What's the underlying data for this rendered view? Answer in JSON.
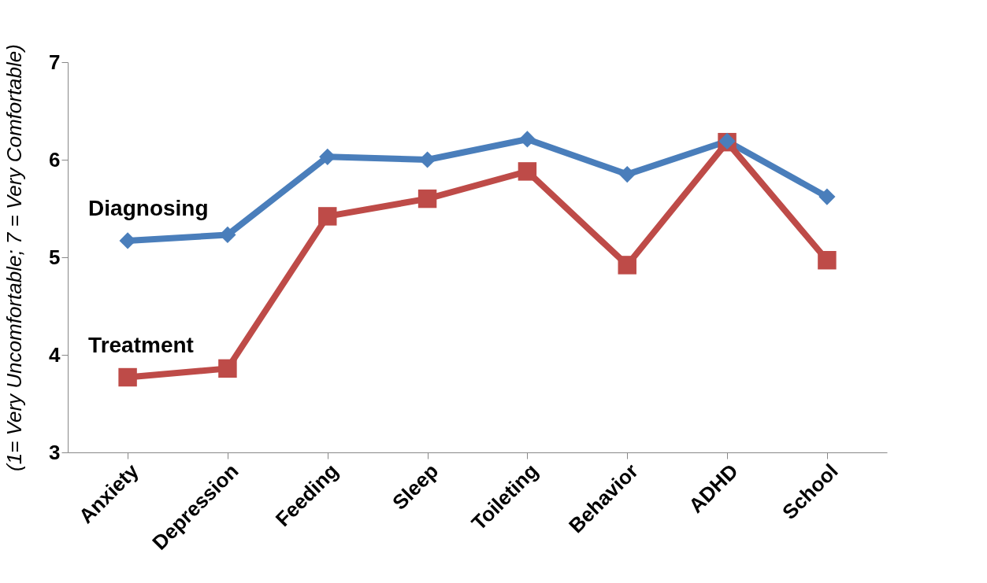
{
  "chart_data": {
    "type": "line",
    "ylabel": "(1= Very Uncomfortable; 7 = Very Comfortable)",
    "categories": [
      "Anxiety",
      "Depression",
      "Feeding",
      "Sleep",
      "Toileting",
      "Behavior",
      "ADHD",
      "School"
    ],
    "series": [
      {
        "name": "Diagnosing",
        "color": "#4a7ebb",
        "marker": "diamond",
        "values": [
          5.17,
          5.23,
          6.03,
          6.0,
          6.21,
          5.85,
          6.19,
          5.62
        ]
      },
      {
        "name": "Treatment",
        "color": "#be4b48",
        "marker": "square",
        "values": [
          3.77,
          3.86,
          5.42,
          5.6,
          5.88,
          4.92,
          6.18,
          4.97
        ]
      }
    ],
    "ylim": [
      3,
      7
    ],
    "yticks": [
      3,
      4,
      5,
      6,
      7
    ],
    "grid": false,
    "legend": false,
    "line_style": "solid"
  }
}
